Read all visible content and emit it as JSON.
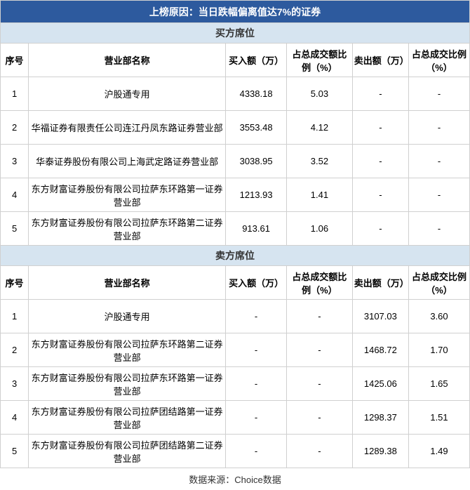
{
  "title": "上榜原因：当日跌幅偏离值达7%的证券",
  "buyer_section": "买方席位",
  "seller_section": "卖方席位",
  "headers": {
    "seq": "序号",
    "name": "营业部名称",
    "buy_amt": "买入额（万）",
    "buy_pct": "占总成交额比例（%）",
    "sell_amt": "卖出额（万）",
    "sell_pct": "占总成交比例（%）"
  },
  "buyers": [
    {
      "seq": "1",
      "name": "沪股通专用",
      "buy_amt": "4338.18",
      "buy_pct": "5.03",
      "sell_amt": "-",
      "sell_pct": "-"
    },
    {
      "seq": "2",
      "name": "华福证券有限责任公司连江丹凤东路证券营业部",
      "buy_amt": "3553.48",
      "buy_pct": "4.12",
      "sell_amt": "-",
      "sell_pct": "-"
    },
    {
      "seq": "3",
      "name": "华泰证券股份有限公司上海武定路证券营业部",
      "buy_amt": "3038.95",
      "buy_pct": "3.52",
      "sell_amt": "-",
      "sell_pct": "-"
    },
    {
      "seq": "4",
      "name": "东方财富证券股份有限公司拉萨东环路第一证券营业部",
      "buy_amt": "1213.93",
      "buy_pct": "1.41",
      "sell_amt": "-",
      "sell_pct": "-"
    },
    {
      "seq": "5",
      "name": "东方财富证券股份有限公司拉萨东环路第二证券营业部",
      "buy_amt": "913.61",
      "buy_pct": "1.06",
      "sell_amt": "-",
      "sell_pct": "-"
    }
  ],
  "sellers": [
    {
      "seq": "1",
      "name": "沪股通专用",
      "buy_amt": "-",
      "buy_pct": "-",
      "sell_amt": "3107.03",
      "sell_pct": "3.60"
    },
    {
      "seq": "2",
      "name": "东方财富证券股份有限公司拉萨东环路第二证券营业部",
      "buy_amt": "-",
      "buy_pct": "-",
      "sell_amt": "1468.72",
      "sell_pct": "1.70"
    },
    {
      "seq": "3",
      "name": "东方财富证券股份有限公司拉萨东环路第一证券营业部",
      "buy_amt": "-",
      "buy_pct": "-",
      "sell_amt": "1425.06",
      "sell_pct": "1.65"
    },
    {
      "seq": "4",
      "name": "东方财富证券股份有限公司拉萨团结路第一证券营业部",
      "buy_amt": "-",
      "buy_pct": "-",
      "sell_amt": "1298.37",
      "sell_pct": "1.51"
    },
    {
      "seq": "5",
      "name": "东方财富证券股份有限公司拉萨团结路第二证券营业部",
      "buy_amt": "-",
      "buy_pct": "-",
      "sell_amt": "1289.38",
      "sell_pct": "1.49"
    }
  ],
  "footer": "数据来源：Choice数据"
}
